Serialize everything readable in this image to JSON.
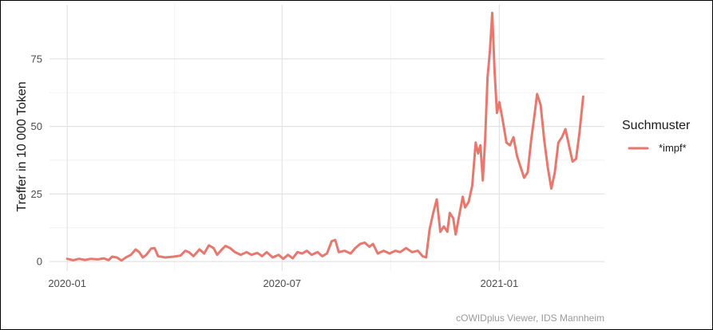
{
  "chart_data": {
    "type": "line",
    "title": "",
    "xlabel": "",
    "ylabel": "Treffer in 10 000 Token",
    "ylim": [
      -3.5,
      95
    ],
    "xlim": [
      "2019-12-17",
      "2021-03-31"
    ],
    "x_ticks": [
      {
        "date": "2020-01-01",
        "label": "2020-01"
      },
      {
        "date": "2020-07-01",
        "label": "2020-07"
      },
      {
        "date": "2021-01-01",
        "label": "2021-01"
      }
    ],
    "y_ticks": [
      0,
      25,
      50,
      75
    ],
    "grid": true,
    "legend": {
      "title": "Suchmuster",
      "position": "right",
      "entries": [
        "*impf*"
      ]
    },
    "caption": "cOWIDplus Viewer, IDS Mannheim",
    "series": [
      {
        "name": "*impf*",
        "color": "#e8776e",
        "points": [
          [
            "2020-01-01",
            1
          ],
          [
            "2020-01-06",
            0.5
          ],
          [
            "2020-01-11",
            1
          ],
          [
            "2020-01-16",
            0.6
          ],
          [
            "2020-01-21",
            1
          ],
          [
            "2020-01-27",
            0.8
          ],
          [
            "2020-02-01",
            1.2
          ],
          [
            "2020-02-05",
            0.5
          ],
          [
            "2020-02-08",
            1.8
          ],
          [
            "2020-02-12",
            1.5
          ],
          [
            "2020-02-16",
            0.4
          ],
          [
            "2020-02-20",
            1.6
          ],
          [
            "2020-02-24",
            2.5
          ],
          [
            "2020-02-28",
            4.5
          ],
          [
            "2020-03-02",
            3.5
          ],
          [
            "2020-03-05",
            1.5
          ],
          [
            "2020-03-08",
            2.5
          ],
          [
            "2020-03-12",
            4.8
          ],
          [
            "2020-03-15",
            5
          ],
          [
            "2020-03-18",
            2
          ],
          [
            "2020-03-24",
            1.5
          ],
          [
            "2020-03-31",
            1.8
          ],
          [
            "2020-04-06",
            2.2
          ],
          [
            "2020-04-10",
            4
          ],
          [
            "2020-04-13",
            3.5
          ],
          [
            "2020-04-17",
            2
          ],
          [
            "2020-04-22",
            4.5
          ],
          [
            "2020-04-26",
            3
          ],
          [
            "2020-04-30",
            6
          ],
          [
            "2020-05-04",
            5
          ],
          [
            "2020-05-07",
            2.5
          ],
          [
            "2020-05-10",
            4
          ],
          [
            "2020-05-14",
            5.8
          ],
          [
            "2020-05-18",
            5
          ],
          [
            "2020-05-22",
            3.5
          ],
          [
            "2020-05-27",
            2.5
          ],
          [
            "2020-06-01",
            3.5
          ],
          [
            "2020-06-05",
            2.5
          ],
          [
            "2020-06-10",
            3.2
          ],
          [
            "2020-06-14",
            2
          ],
          [
            "2020-06-18",
            3.5
          ],
          [
            "2020-06-23",
            1.5
          ],
          [
            "2020-06-28",
            2.5
          ],
          [
            "2020-07-02",
            1
          ],
          [
            "2020-07-06",
            2.5
          ],
          [
            "2020-07-10",
            1.2
          ],
          [
            "2020-07-14",
            3.5
          ],
          [
            "2020-07-18",
            3
          ],
          [
            "2020-07-22",
            4
          ],
          [
            "2020-07-26",
            2.5
          ],
          [
            "2020-07-31",
            3.5
          ],
          [
            "2020-08-04",
            2
          ],
          [
            "2020-08-08",
            3
          ],
          [
            "2020-08-12",
            7.5
          ],
          [
            "2020-08-15",
            8
          ],
          [
            "2020-08-18",
            3.5
          ],
          [
            "2020-08-23",
            4
          ],
          [
            "2020-08-28",
            3
          ],
          [
            "2020-09-01",
            5
          ],
          [
            "2020-09-05",
            6.5
          ],
          [
            "2020-09-09",
            7
          ],
          [
            "2020-09-13",
            5.5
          ],
          [
            "2020-09-16",
            6.5
          ],
          [
            "2020-09-20",
            3
          ],
          [
            "2020-09-25",
            4
          ],
          [
            "2020-09-30",
            3
          ],
          [
            "2020-10-05",
            4
          ],
          [
            "2020-10-09",
            3.5
          ],
          [
            "2020-10-14",
            5
          ],
          [
            "2020-10-19",
            3.5
          ],
          [
            "2020-10-24",
            4
          ],
          [
            "2020-10-28",
            2
          ],
          [
            "2020-10-31",
            1.5
          ],
          [
            "2020-11-03",
            12
          ],
          [
            "2020-11-06",
            18
          ],
          [
            "2020-11-09",
            23
          ],
          [
            "2020-11-12",
            11
          ],
          [
            "2020-11-15",
            13
          ],
          [
            "2020-11-18",
            11
          ],
          [
            "2020-11-20",
            18
          ],
          [
            "2020-11-23",
            16
          ],
          [
            "2020-11-25",
            10
          ],
          [
            "2020-11-28",
            17
          ],
          [
            "2020-12-01",
            24
          ],
          [
            "2020-12-03",
            20
          ],
          [
            "2020-12-06",
            22
          ],
          [
            "2020-12-09",
            28
          ],
          [
            "2020-12-12",
            44
          ],
          [
            "2020-12-14",
            40
          ],
          [
            "2020-12-16",
            43
          ],
          [
            "2020-12-18",
            30
          ],
          [
            "2020-12-20",
            45
          ],
          [
            "2020-12-22",
            68
          ],
          [
            "2020-12-24",
            78
          ],
          [
            "2020-12-26",
            92
          ],
          [
            "2020-12-28",
            70
          ],
          [
            "2020-12-30",
            55
          ],
          [
            "2021-01-01",
            59
          ],
          [
            "2021-01-04",
            52
          ],
          [
            "2021-01-07",
            44
          ],
          [
            "2021-01-10",
            43
          ],
          [
            "2021-01-13",
            46
          ],
          [
            "2021-01-16",
            39
          ],
          [
            "2021-01-19",
            35
          ],
          [
            "2021-01-22",
            31
          ],
          [
            "2021-01-25",
            33
          ],
          [
            "2021-01-28",
            45
          ],
          [
            "2021-01-31",
            55
          ],
          [
            "2021-02-02",
            62
          ],
          [
            "2021-02-05",
            58
          ],
          [
            "2021-02-08",
            45
          ],
          [
            "2021-02-11",
            35
          ],
          [
            "2021-02-14",
            27
          ],
          [
            "2021-02-17",
            33
          ],
          [
            "2021-02-20",
            44
          ],
          [
            "2021-02-23",
            46
          ],
          [
            "2021-02-26",
            49
          ],
          [
            "2021-03-01",
            43
          ],
          [
            "2021-03-04",
            37
          ],
          [
            "2021-03-07",
            38
          ],
          [
            "2021-03-10",
            48
          ],
          [
            "2021-03-13",
            61
          ]
        ]
      }
    ]
  }
}
